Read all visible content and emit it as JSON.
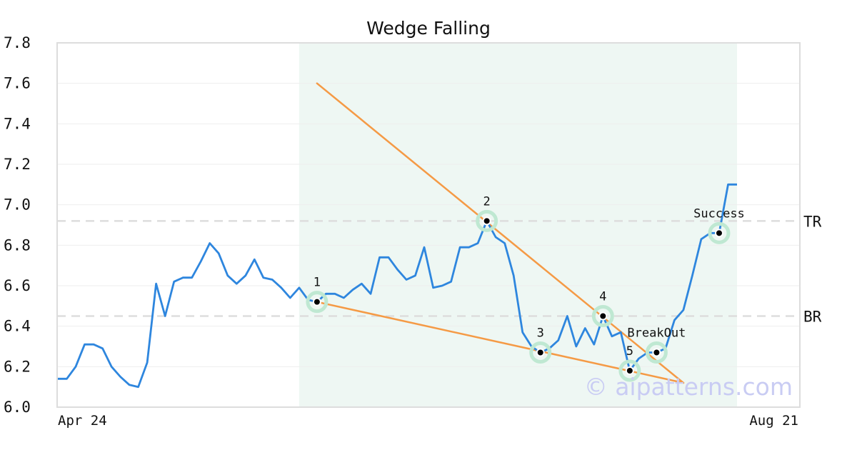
{
  "chart_data": {
    "type": "line",
    "title": "Wedge Falling",
    "xlabel": "",
    "ylabel": "",
    "ylim": [
      6.0,
      7.8
    ],
    "yticks": [
      "6.0",
      "6.2",
      "6.4",
      "6.6",
      "6.8",
      "7.0",
      "7.2",
      "7.4",
      "7.6",
      "7.8"
    ],
    "xtick_labels": [
      "Apr 24",
      "Aug 21"
    ],
    "grid": true,
    "colors": {
      "price": "#2e86de",
      "trendline": "#f59a45",
      "highlight_band": "#eef7f3",
      "marker_halo": "#bfe8d2",
      "reference_line": "#dddddd"
    },
    "series": [
      {
        "values": [
          6.14,
          6.14,
          6.2,
          6.31,
          6.31,
          6.29,
          6.2,
          6.15,
          6.11,
          6.1,
          6.22,
          6.61,
          6.45,
          6.62,
          6.64,
          6.64,
          6.72,
          6.81,
          6.76,
          6.65,
          6.61,
          6.65,
          6.73,
          6.64,
          6.63,
          6.59,
          6.54,
          6.59,
          6.53,
          6.52,
          6.56,
          6.56,
          6.54,
          6.58,
          6.61,
          6.56,
          6.74,
          6.74,
          6.68,
          6.63,
          6.65,
          6.79,
          6.59,
          6.6,
          6.62,
          6.79,
          6.79,
          6.81,
          6.92,
          6.84,
          6.81,
          6.65,
          6.37,
          6.3,
          6.27,
          6.29,
          6.33,
          6.45,
          6.3,
          6.39,
          6.31,
          6.45,
          6.35,
          6.37,
          6.18,
          6.24,
          6.27,
          6.27,
          6.29,
          6.43,
          6.48,
          6.65,
          6.83,
          6.86,
          6.86,
          7.1,
          7.1
        ]
      }
    ],
    "highlight_region": {
      "start_index": 27,
      "end_index": 76
    },
    "trendlines": [
      {
        "from": {
          "index": 29,
          "value": 7.6
        },
        "to": {
          "index": 70,
          "value": 6.12
        }
      },
      {
        "from": {
          "index": 29,
          "value": 6.52
        },
        "to": {
          "index": 70,
          "value": 6.12
        }
      }
    ],
    "reference_lines": [
      {
        "label": "TR",
        "value": 6.92
      },
      {
        "label": "BR",
        "value": 6.45
      }
    ],
    "points": [
      {
        "label": "1",
        "index": 29,
        "value": 6.52,
        "label_pos": "above"
      },
      {
        "label": "2",
        "index": 48,
        "value": 6.92,
        "label_pos": "above"
      },
      {
        "label": "3",
        "index": 54,
        "value": 6.27,
        "label_pos": "above"
      },
      {
        "label": "4",
        "index": 61,
        "value": 6.45,
        "label_pos": "above"
      },
      {
        "label": "5",
        "index": 64,
        "value": 6.18,
        "label_pos": "above"
      },
      {
        "label": "BreakOut",
        "index": 67,
        "value": 6.27,
        "label_pos": "above"
      },
      {
        "label": "Success",
        "index": 74,
        "value": 6.86,
        "label_pos": "above"
      }
    ]
  },
  "watermark": "© aipatterns.com"
}
